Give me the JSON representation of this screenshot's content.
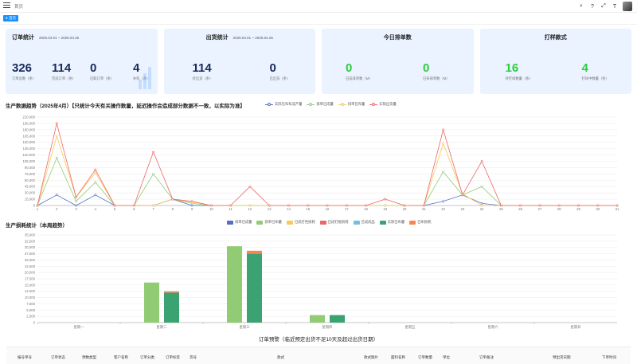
{
  "header": {
    "breadcrumb": "首页",
    "tab": "首页"
  },
  "cards": [
    {
      "title": "订单统计",
      "date": "2025.04.01 ~ 2025.04.26",
      "stats": [
        {
          "value": "326",
          "label": "订单总数（条）"
        },
        {
          "value": "114",
          "label": "完成订单（条）"
        },
        {
          "value": "0",
          "label": "已取订单（条）"
        },
        {
          "value": "4",
          "label": "补料（条）"
        }
      ]
    },
    {
      "title": "出货统计",
      "date": "2025.04.01 ~ 2025.04.26",
      "stats": [
        {
          "value": "114",
          "label": "待出货（条）"
        },
        {
          "value": "0",
          "label": "已出货（条）"
        }
      ]
    },
    {
      "title": "今日排单数",
      "stats": [
        {
          "value": "0",
          "label": "已成排单数（M）"
        },
        {
          "value": "0",
          "label": "已布排单数（M）"
        }
      ]
    },
    {
      "title": "打样款式",
      "stats": [
        {
          "value": "16",
          "label": "待打样数量（条）"
        },
        {
          "value": "4",
          "label": "打样中数量（条）"
        }
      ]
    }
  ],
  "colors": {
    "blue": "#5470c6",
    "green": "#91cc75",
    "yellow": "#fac858",
    "red": "#ee6666",
    "cyan": "#73c0de",
    "darkgreen": "#3ba272",
    "orange": "#fc8452",
    "card_bg": "#eaf3ff"
  },
  "icons": [
    "search-icon",
    "help-icon",
    "fullscreen-icon",
    "font-size-icon"
  ],
  "chart_data": [
    {
      "type": "line",
      "title": "生产数据趋势（2025年4月）【只统计今天有关操作数量，延迟操作会造成部分数据不一致，以实际为准】",
      "xlabel": "",
      "ylabel": "",
      "x": [
        "1",
        "2",
        "3",
        "4",
        "5",
        "6",
        "7",
        "8",
        "9",
        "10",
        "11",
        "12",
        "13",
        "14",
        "15",
        "16",
        "17",
        "18",
        "19",
        "20",
        "21",
        "22",
        "23",
        "24",
        "25",
        "26",
        "27",
        "28",
        "29",
        "30",
        "31"
      ],
      "ylim": [
        0,
        210000
      ],
      "yticks": [
        0,
        15000,
        30000,
        45000,
        60000,
        75000,
        90000,
        105000,
        120000,
        135000,
        150000,
        165000,
        180000,
        195000,
        210000
      ],
      "ytick_labels": [
        "0",
        "15,000",
        "30,000",
        "45,000",
        "60,000",
        "75,000",
        "90,000",
        "105,000",
        "120,000",
        "135,000",
        "150,000",
        "165,000",
        "180,000",
        "195,000",
        "210,000"
      ],
      "legend_position": "top-right",
      "grid": true,
      "series": [
        {
          "name": "实际已布布成产量",
          "color": "#5470c6",
          "values": [
            0,
            25000,
            0,
            25000,
            0,
            0,
            0,
            15000,
            0,
            0,
            0,
            0,
            0,
            0,
            0,
            0,
            0,
            0,
            0,
            0,
            0,
            10000,
            25000,
            5000,
            0,
            0,
            0,
            0,
            0,
            0,
            0
          ]
        },
        {
          "name": "排单已成量",
          "color": "#91cc75",
          "values": [
            0,
            113000,
            10000,
            55000,
            0,
            0,
            75000,
            15000,
            5000,
            0,
            0,
            0,
            0,
            0,
            0,
            0,
            0,
            0,
            0,
            0,
            0,
            80000,
            25000,
            45000,
            0,
            0,
            0,
            0,
            0,
            0,
            0
          ]
        },
        {
          "name": "排单已布量",
          "color": "#fac858",
          "values": [
            0,
            165000,
            20000,
            78000,
            0,
            0,
            0,
            15000,
            8000,
            0,
            0,
            0,
            0,
            0,
            0,
            0,
            0,
            0,
            0,
            0,
            0,
            147000,
            28000,
            0,
            0,
            0,
            0,
            0,
            0,
            0,
            0
          ]
        },
        {
          "name": "实际出货量",
          "color": "#ee6666",
          "values": [
            0,
            195000,
            20000,
            85000,
            0,
            0,
            127000,
            15000,
            10000,
            0,
            0,
            45000,
            0,
            0,
            0,
            0,
            0,
            0,
            15000,
            0,
            0,
            180000,
            25000,
            105000,
            0,
            0,
            0,
            0,
            0,
            0,
            0
          ]
        }
      ]
    },
    {
      "type": "bar",
      "title": "生产损耗统计（本周趋势）",
      "categories": [
        "星期一",
        "星期二",
        "星期三",
        "星期四",
        "星期五",
        "星期六",
        "星期日"
      ],
      "ylim": [
        0,
        35000
      ],
      "yticks": [
        0,
        2500,
        5000,
        7500,
        10000,
        12500,
        15000,
        17500,
        20000,
        22500,
        25000,
        27500,
        30000,
        32500,
        35000
      ],
      "ytick_labels": [
        "0",
        "2,500",
        "5,000",
        "7,500",
        "10,000",
        "12,500",
        "15,000",
        "17,500",
        "20,000",
        "22,500",
        "25,000",
        "27,500",
        "30,000",
        "32,500",
        "35,000"
      ],
      "legend_position": "top-center",
      "series": [
        {
          "name": "排单已成量",
          "color": "#5470c6",
          "values": [
            0,
            0,
            0,
            0,
            0,
            0,
            0
          ]
        },
        {
          "name": "排单已布量",
          "color": "#91cc75",
          "values": [
            0,
            16000,
            30500,
            3000,
            0,
            0,
            0
          ]
        },
        {
          "name": "已成打色损耗",
          "color": "#fac858",
          "values": [
            0,
            0,
            0,
            0,
            0,
            0,
            0
          ]
        },
        {
          "name": "已成打板损耗",
          "color": "#ee6666",
          "values": [
            0,
            0,
            0,
            0,
            0,
            0,
            0
          ]
        },
        {
          "name": "已成成品",
          "color": "#73c0de",
          "values": [
            0,
            0,
            0,
            0,
            0,
            0,
            0
          ]
        },
        {
          "name": "实际已布量",
          "color": "#3ba272",
          "values": [
            0,
            12000,
            27500,
            3000,
            0,
            0,
            0
          ]
        },
        {
          "name": "已布损耗",
          "color": "#fc8452",
          "values": [
            0,
            500,
            1200,
            0,
            0,
            0,
            0
          ]
        }
      ]
    }
  ],
  "warning": {
    "title": "订单预警（临近预定出货不足10天及超过出货日期）",
    "columns": [
      "报号单号",
      "订单状态",
      "预数类型",
      "客户名称",
      "订单分类",
      "订单标签",
      "货号",
      "款式",
      "款式图片",
      "面料名称",
      "订单数量",
      "单位",
      "订单备注",
      "预出货日期",
      "下单时间"
    ]
  }
}
